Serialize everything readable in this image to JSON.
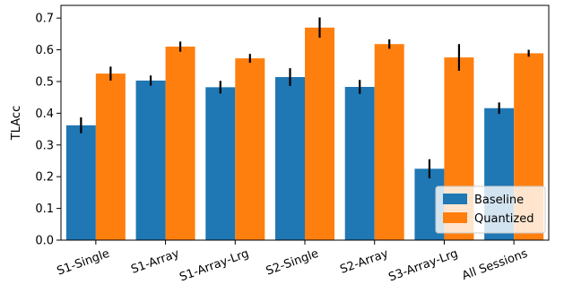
{
  "chart_data": {
    "type": "bar",
    "title": "",
    "xlabel": "",
    "ylabel": "TLAcc",
    "ylim": [
      0,
      0.74
    ],
    "yticks": [
      "0.0",
      "0.1",
      "0.2",
      "0.3",
      "0.4",
      "0.5",
      "0.6",
      "0.7"
    ],
    "categories": [
      "S1-Single",
      "S1-Array",
      "S1-Array-Lrg",
      "S2-Single",
      "S2-Array",
      "S3-Array-Lrg",
      "All Sessions"
    ],
    "series": [
      {
        "name": "Baseline",
        "color": "#1f77b4",
        "values": [
          0.362,
          0.503,
          0.482,
          0.514,
          0.483,
          0.225,
          0.416
        ],
        "errors": [
          0.025,
          0.016,
          0.02,
          0.028,
          0.022,
          0.03,
          0.018
        ]
      },
      {
        "name": "Quantized",
        "color": "#ff7f0e",
        "values": [
          0.525,
          0.61,
          0.573,
          0.67,
          0.618,
          0.576,
          0.589
        ],
        "errors": [
          0.022,
          0.016,
          0.014,
          0.032,
          0.015,
          0.042,
          0.011
        ]
      }
    ],
    "legend_position": "lower-right",
    "grid": false
  }
}
